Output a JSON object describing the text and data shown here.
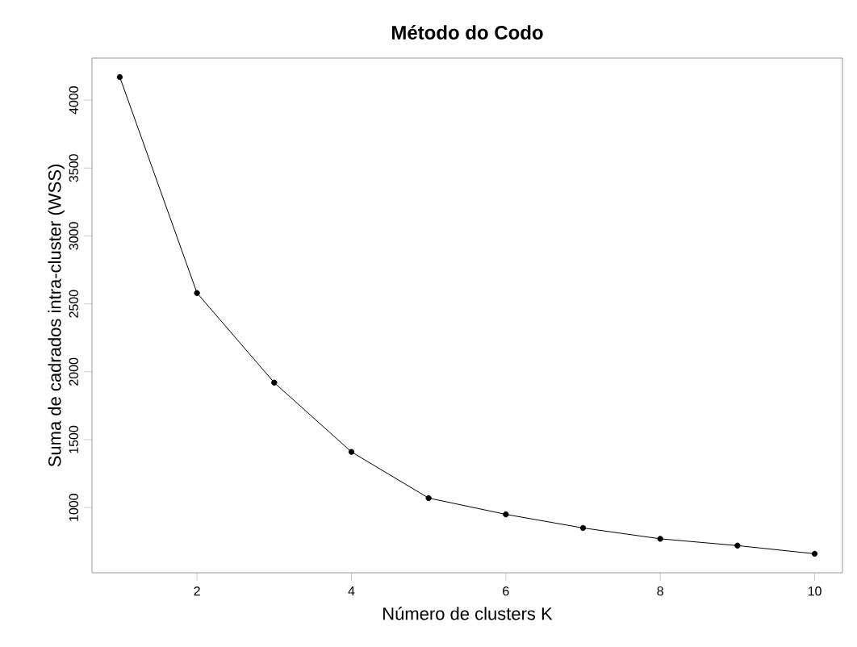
{
  "chart_data": {
    "type": "line",
    "title": "Método do Codo",
    "xlabel": "Número de clusters K",
    "ylabel": "Suma de cadrados intra-cluster (WSS)",
    "x": [
      1,
      2,
      3,
      4,
      5,
      6,
      7,
      8,
      9,
      10
    ],
    "series": [
      {
        "color": "#000000",
        "values": [
          4170,
          2580,
          1920,
          1410,
          1070,
          950,
          850,
          770,
          720,
          660
        ]
      }
    ],
    "xlim": [
      0.64,
      10.36
    ],
    "ylim": [
      520,
      4310
    ],
    "xticks": [
      2,
      4,
      6,
      8,
      10
    ],
    "yticks": [
      1000,
      1500,
      2000,
      2500,
      3000,
      3500,
      4000
    ],
    "marker": "circle",
    "line_style": "solid",
    "grid": false
  }
}
